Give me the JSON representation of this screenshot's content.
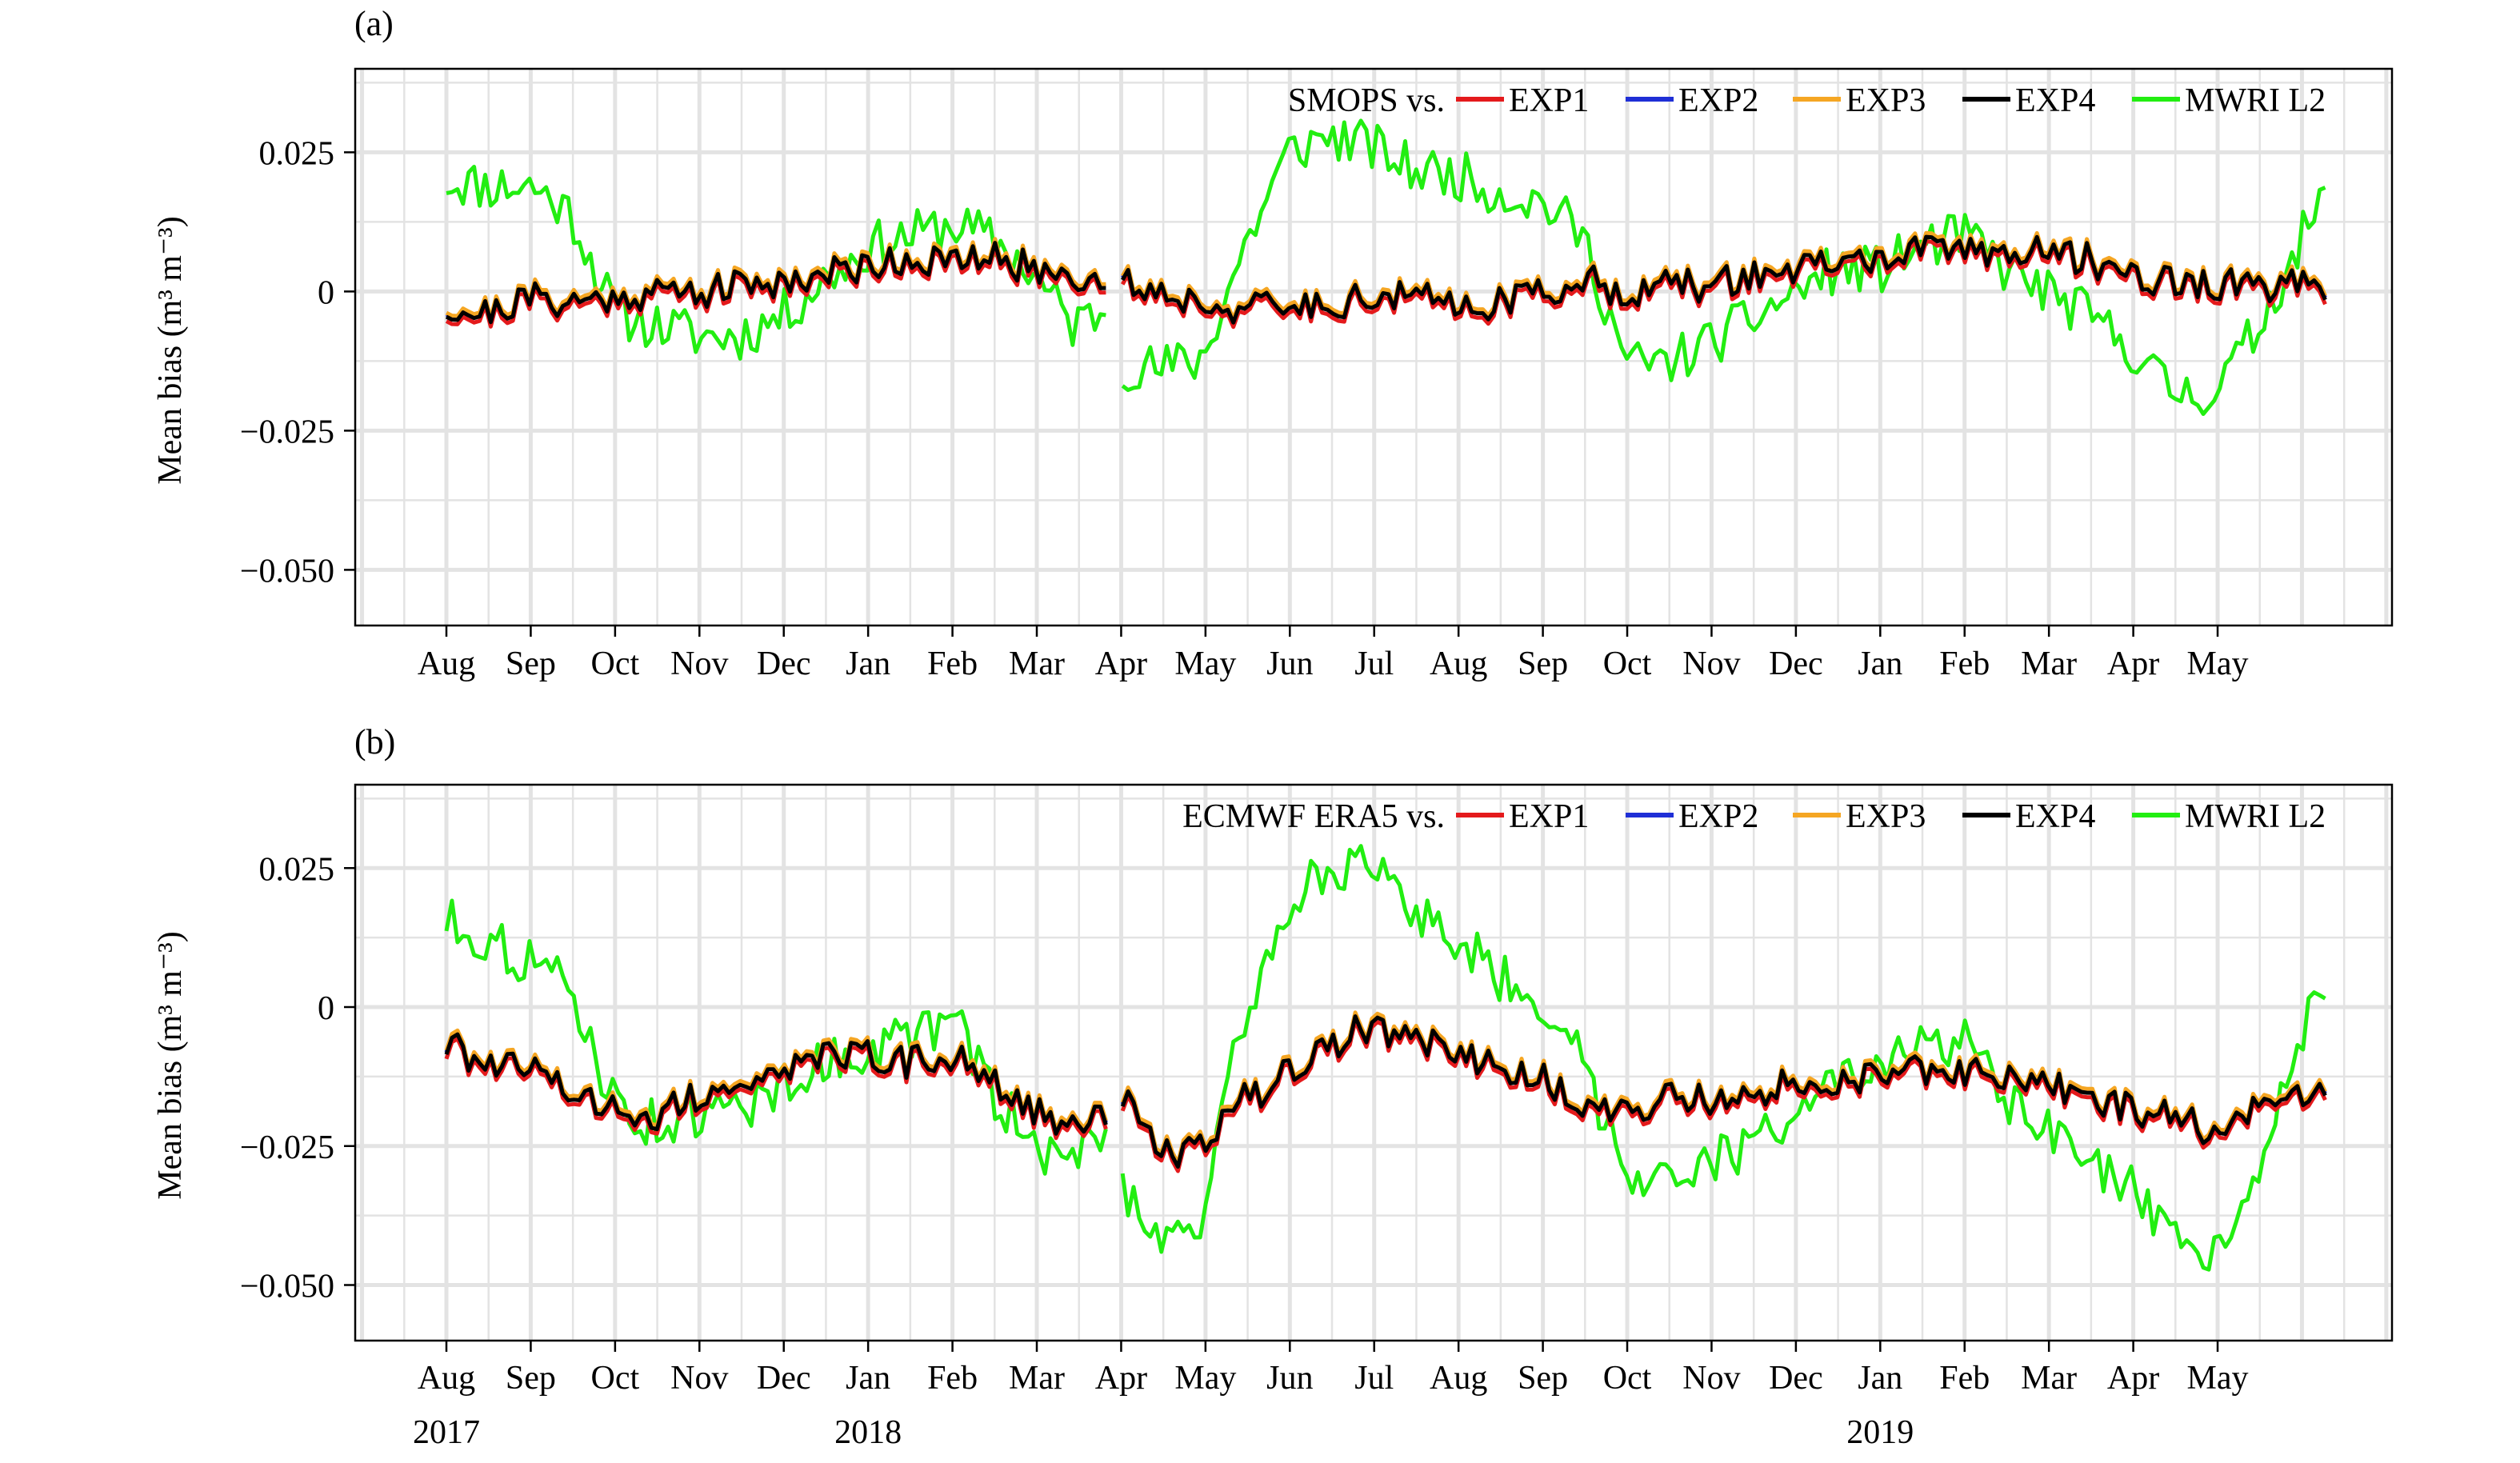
{
  "panels": [
    {
      "label": "(a)",
      "ylabel": "Mean bias (m³ m⁻³)",
      "legend_prefix": "SMOPS vs."
    },
    {
      "label": "(b)",
      "ylabel": "Mean bias (m³ m⁻³)",
      "legend_prefix": "ECMWF ERA5 vs."
    }
  ],
  "x_month_labels": [
    "Aug",
    "Sep",
    "Oct",
    "Nov",
    "Dec",
    "Jan",
    "Feb",
    "Mar",
    "Apr",
    "May",
    "Jun",
    "Jul",
    "Aug",
    "Sep",
    "Oct",
    "Nov",
    "Dec",
    "Jan",
    "Feb",
    "Mar",
    "Apr",
    "May"
  ],
  "year_labels": [
    {
      "text": "2017",
      "month_index": 0
    },
    {
      "text": "2018",
      "month_index": 5
    },
    {
      "text": "2019",
      "month_index": 17
    }
  ],
  "colors": {
    "EXP1": "#e41a1c",
    "EXP2": "#1f2fd6",
    "EXP3": "#f5a623",
    "EXP4": "#000000",
    "MWRI L2": "#22ee11",
    "grid": "#e3e3e3",
    "frame": "#000000"
  },
  "chart_data": [
    {
      "type": "line",
      "title": "(a)",
      "xlabel": "",
      "ylabel": "Mean bias (m³ m⁻³)",
      "x_range": [
        "2017-08-01",
        "2019-06-30"
      ],
      "ylim": [
        -0.06,
        0.04
      ],
      "yticks": [
        0.025,
        0,
        -0.025,
        -0.05
      ],
      "ytick_labels": [
        "0.025",
        "0",
        "−0.025",
        "−0.050"
      ],
      "legend": {
        "placement": "top-right",
        "prefix": "SMOPS vs.",
        "entries": [
          "EXP1",
          "EXP2",
          "EXP3",
          "EXP4",
          "MWRI L2"
        ]
      },
      "grid": true,
      "x": [
        "2017-08-01",
        "2017-08-15",
        "2017-09-01",
        "2017-09-15",
        "2017-10-01",
        "2017-10-15",
        "2017-11-01",
        "2017-11-15",
        "2017-12-01",
        "2017-12-15",
        "2018-01-01",
        "2018-01-15",
        "2018-02-01",
        "2018-02-15",
        "2018-03-01",
        "2018-03-15",
        "2018-03-27",
        "2018-04-01",
        "2018-04-15",
        "2018-05-01",
        "2018-05-15",
        "2018-06-01",
        "2018-06-15",
        "2018-07-01",
        "2018-07-15",
        "2018-08-01",
        "2018-08-15",
        "2018-09-01",
        "2018-09-15",
        "2018-10-01",
        "2018-10-15",
        "2018-11-01",
        "2018-11-15",
        "2018-12-01",
        "2018-12-15",
        "2019-01-01",
        "2019-01-15",
        "2019-02-01",
        "2019-02-15",
        "2019-03-01",
        "2019-03-15",
        "2019-04-01",
        "2019-04-15",
        "2019-05-01",
        "2019-05-15",
        "2019-06-01",
        "2019-06-10"
      ],
      "series": [
        {
          "name": "EXP4",
          "values": [
            -0.003,
            -0.004,
            -0.001,
            -0.002,
            -0.001,
            0.0,
            0.0,
            0.001,
            0.002,
            0.003,
            0.005,
            0.006,
            0.005,
            0.006,
            0.004,
            0.003,
            0.002,
            0.002,
            0.0,
            -0.002,
            -0.003,
            -0.003,
            -0.002,
            -0.001,
            -0.001,
            -0.002,
            -0.002,
            0.0,
            0.002,
            0.0,
            0.001,
            0.001,
            0.003,
            0.004,
            0.005,
            0.006,
            0.007,
            0.008,
            0.007,
            0.007,
            0.006,
            0.003,
            0.002,
            0.001,
            0.001,
            0.001,
            -0.002
          ]
        },
        {
          "name": "MWRI L2",
          "values": [
            0.02,
            0.019,
            0.019,
            0.014,
            -0.004,
            -0.006,
            -0.008,
            -0.008,
            -0.004,
            0.002,
            0.008,
            0.01,
            0.012,
            0.009,
            0.003,
            -0.006,
            -0.003,
            -0.013,
            -0.014,
            -0.012,
            0.007,
            0.025,
            0.028,
            0.026,
            0.022,
            0.021,
            0.018,
            0.016,
            0.01,
            -0.013,
            -0.013,
            -0.009,
            -0.005,
            0.0,
            0.004,
            0.004,
            0.008,
            0.01,
            0.004,
            0.0,
            -0.004,
            -0.01,
            -0.018,
            -0.018,
            -0.008,
            0.009,
            0.017
          ]
        }
      ]
    },
    {
      "type": "line",
      "title": "(b)",
      "xlabel": "",
      "ylabel": "Mean bias (m³ m⁻³)",
      "x_range": [
        "2017-08-01",
        "2019-06-30"
      ],
      "ylim": [
        -0.06,
        0.04
      ],
      "yticks": [
        0.025,
        0,
        -0.025,
        -0.05
      ],
      "ytick_labels": [
        "0.025",
        "0",
        "−0.025",
        "−0.050"
      ],
      "legend": {
        "placement": "top-right",
        "prefix": "ECMWF ERA5 vs.",
        "entries": [
          "EXP1",
          "EXP2",
          "EXP3",
          "EXP4",
          "MWRI L2"
        ]
      },
      "grid": true,
      "x": [
        "2017-08-01",
        "2017-08-15",
        "2017-09-01",
        "2017-09-15",
        "2017-10-01",
        "2017-10-15",
        "2017-11-01",
        "2017-11-15",
        "2017-12-01",
        "2017-12-15",
        "2018-01-01",
        "2018-01-15",
        "2018-02-01",
        "2018-02-15",
        "2018-03-01",
        "2018-03-15",
        "2018-03-27",
        "2018-04-01",
        "2018-04-15",
        "2018-05-01",
        "2018-05-15",
        "2018-06-01",
        "2018-06-15",
        "2018-07-01",
        "2018-07-15",
        "2018-08-01",
        "2018-08-15",
        "2018-09-01",
        "2018-09-15",
        "2018-10-01",
        "2018-10-15",
        "2018-11-01",
        "2018-11-15",
        "2018-12-01",
        "2018-12-15",
        "2019-01-01",
        "2019-01-15",
        "2019-02-01",
        "2019-02-15",
        "2019-03-01",
        "2019-03-15",
        "2019-04-01",
        "2019-04-15",
        "2019-05-01",
        "2019-05-15",
        "2019-06-01",
        "2019-06-10"
      ],
      "series": [
        {
          "name": "EXP4",
          "values": [
            -0.007,
            -0.01,
            -0.012,
            -0.015,
            -0.018,
            -0.02,
            -0.016,
            -0.013,
            -0.011,
            -0.009,
            -0.009,
            -0.01,
            -0.009,
            -0.013,
            -0.018,
            -0.022,
            -0.02,
            -0.015,
            -0.027,
            -0.025,
            -0.017,
            -0.012,
            -0.007,
            -0.003,
            -0.006,
            -0.008,
            -0.01,
            -0.013,
            -0.017,
            -0.02,
            -0.016,
            -0.017,
            -0.015,
            -0.014,
            -0.013,
            -0.012,
            -0.011,
            -0.012,
            -0.013,
            -0.013,
            -0.016,
            -0.018,
            -0.02,
            -0.022,
            -0.018,
            -0.016,
            -0.013
          ]
        },
        {
          "name": "MWRI L2",
          "values": [
            0.016,
            0.012,
            0.008,
            0.003,
            -0.018,
            -0.021,
            -0.02,
            -0.018,
            -0.014,
            -0.01,
            -0.008,
            -0.005,
            -0.003,
            -0.016,
            -0.025,
            -0.028,
            -0.021,
            -0.031,
            -0.041,
            -0.038,
            -0.003,
            0.018,
            0.026,
            0.024,
            0.018,
            0.012,
            0.006,
            0.001,
            -0.01,
            -0.03,
            -0.029,
            -0.028,
            -0.025,
            -0.018,
            -0.014,
            -0.012,
            -0.007,
            -0.006,
            -0.018,
            -0.022,
            -0.028,
            -0.033,
            -0.043,
            -0.044,
            -0.03,
            -0.006,
            0.005
          ]
        }
      ]
    }
  ]
}
